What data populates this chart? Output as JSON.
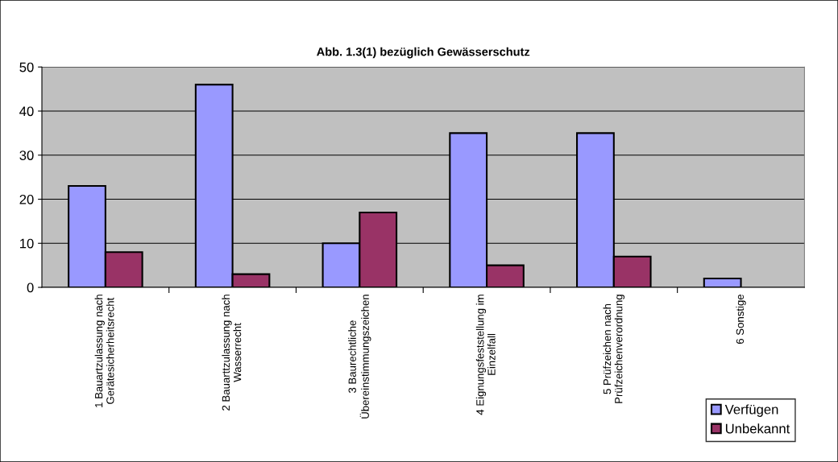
{
  "chart_data": {
    "type": "bar",
    "title": "Abb. 1.3(1) bezüglich Gewässerschutz",
    "categories": [
      "1 Bauartzulassung nach\nGerätesicherheitsrecht",
      "2 Bauarttzulassung nach\nWasserrecht",
      "3 Baurechtliche\nÜbereinstimmungszeichen",
      "4 Eignungsfeststellung im\nEinzelfall",
      "5 Prüfzeichen nach\nPrüfzeichenverordnung",
      "6 Sonstige"
    ],
    "series": [
      {
        "name": "Verfügen",
        "color": "#9999ff",
        "values": [
          23,
          46,
          10,
          35,
          35,
          2
        ]
      },
      {
        "name": "Unbekannt",
        "color": "#993366",
        "values": [
          8,
          3,
          17,
          5,
          7,
          0
        ]
      }
    ],
    "ylim": [
      0,
      50
    ],
    "yticks": [
      0,
      10,
      20,
      30,
      40,
      50
    ],
    "grid": "y",
    "legend": "bottom right"
  }
}
